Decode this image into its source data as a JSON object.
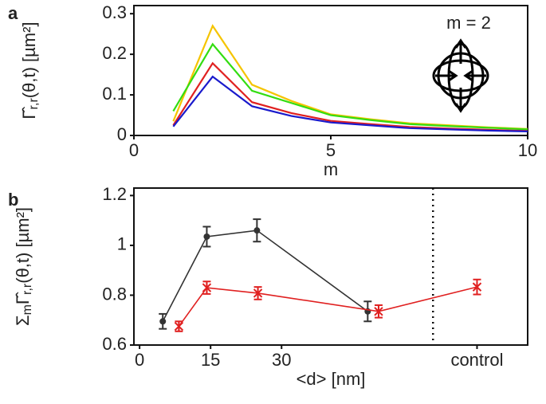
{
  "chart_data": [
    {
      "type": "line",
      "panel": "a",
      "xlabel": "m",
      "ylabel": [
        {
          "text": "Γ̂"
        },
        {
          "text": "r,r",
          "sub": true
        },
        {
          "text": "(θ,t) [µm²]"
        }
      ],
      "annotation": "m = 2",
      "x": [
        1,
        2,
        3,
        4,
        5,
        6,
        7,
        8,
        9,
        10
      ],
      "series": [
        {
          "color": "#f5c400",
          "values": [
            0.035,
            0.27,
            0.125,
            0.085,
            0.052,
            0.04,
            0.03,
            0.025,
            0.02,
            0.016
          ]
        },
        {
          "color": "#33dd11",
          "values": [
            0.06,
            0.225,
            0.11,
            0.08,
            0.05,
            0.038,
            0.028,
            0.023,
            0.019,
            0.015
          ]
        },
        {
          "color": "#e02020",
          "values": [
            0.025,
            0.178,
            0.082,
            0.055,
            0.036,
            0.028,
            0.021,
            0.017,
            0.014,
            0.011
          ]
        },
        {
          "color": "#1a1acc",
          "values": [
            0.022,
            0.145,
            0.072,
            0.048,
            0.032,
            0.025,
            0.018,
            0.015,
            0.012,
            0.01
          ]
        }
      ],
      "xlim": [
        0,
        10
      ],
      "ylim": [
        0,
        0.32
      ],
      "xticks": [
        0,
        5,
        10
      ],
      "yticks": [
        0,
        0.1,
        0.2,
        0.3
      ]
    },
    {
      "type": "line",
      "panel": "b",
      "xlabel": "<d> [nm]",
      "ylabel": [
        {
          "text": "Σ"
        },
        {
          "text": "m",
          "sub": true
        },
        {
          "text": "Γ̂"
        },
        {
          "text": "r,r",
          "sub": true
        },
        {
          "text": "(θ,t) [µm²]"
        }
      ],
      "divider_x": 62,
      "series": [
        {
          "color": "#333333",
          "marker": "circle",
          "x": [
            4.9,
            14.2,
            24.8,
            48.2
          ],
          "values": [
            0.695,
            1.035,
            1.06,
            0.735
          ],
          "errors": [
            0.03,
            0.04,
            0.045,
            0.04
          ]
        },
        {
          "color": "#e02020",
          "marker": "star",
          "x": [
            8.3,
            14.2,
            25,
            50.5,
            71.3
          ],
          "values": [
            0.675,
            0.83,
            0.808,
            0.735,
            0.833
          ],
          "errors": [
            0.02,
            0.025,
            0.025,
            0.025,
            0.03
          ]
        }
      ],
      "xlim": [
        -1.2,
        82
      ],
      "ylim": [
        0.6,
        1.23
      ],
      "xticks": [
        0,
        15,
        30,
        {
          "value": 71.3,
          "label": "control"
        }
      ],
      "yticks": [
        0.6,
        0.8,
        1,
        1.2
      ]
    }
  ]
}
